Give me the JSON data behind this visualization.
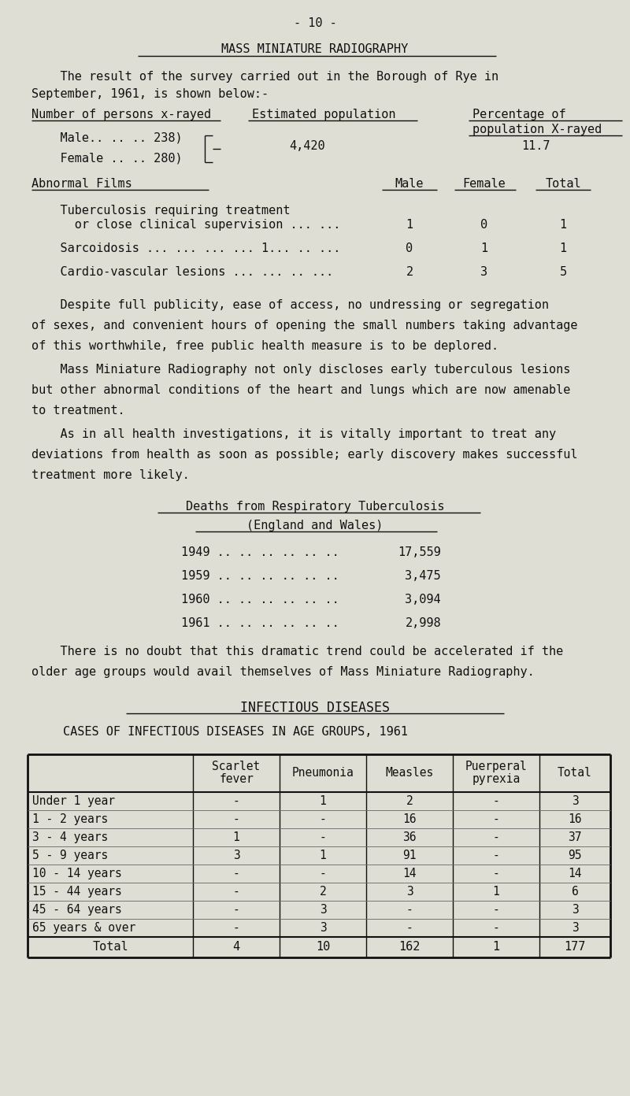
{
  "bg_color": "#deded4",
  "text_color": "#1a1a1a",
  "page_number": "- 10 -",
  "section_title": "MASS MINIATURE RADIOGRAPHY",
  "para1_line1": "    The result of the survey carried out in the Borough of Rye in",
  "para1_line2": "September, 1961, is shown below:-",
  "col_hdr1": "Number of persons x-rayed",
  "col_hdr2": "Estimated population",
  "col_hdr3_1": "Percentage of",
  "col_hdr3_2": "population X-rayed",
  "male_line": "    Male.. .. .. 238)",
  "female_line": "    Female .. .. 280)",
  "est_pop": "4,420",
  "pct": "11.7",
  "abnormal_header": "Abnormal Films",
  "abn_col1": "Male",
  "abn_col2": "Female",
  "abn_col3": "Total",
  "tb_line1": "    Tuberculosis requiring treatment",
  "tb_line2": "      or close clinical supervision ... ...",
  "tb_male": "1",
  "tb_female": "0",
  "tb_total": "1",
  "sarc_line": "    Sarcoidosis ... ... ... ... 1... .. ...",
  "sarc_male": "0",
  "sarc_female": "1",
  "sarc_total": "1",
  "cardio_line": "    Cardio-vascular lesions ... ... .. ...",
  "cardio_male": "2",
  "cardio_female": "3",
  "cardio_total": "5",
  "para2_lines": [
    "    Despite full publicity, ease of access, no undressing or segregation",
    "of sexes, and convenient hours of opening the small numbers taking advantage",
    "of this worthwhile, free public health measure is to be deplored."
  ],
  "para3_lines": [
    "    Mass Miniature Radiography not only discloses early tuberculous lesions",
    "but other abnormal conditions of the heart and lungs which are now amenable",
    "to treatment."
  ],
  "para4_lines": [
    "    As in all health investigations, it is vitally important to treat any",
    "deviations from health as soon as possible; early discovery makes successful",
    "treatment more likely."
  ],
  "deaths_title1": "Deaths from Respiratory Tuberculosis",
  "deaths_title2": "(England and Wales)",
  "deaths_rows": [
    [
      "1949 .. .. .. .. .. ..",
      "17,559"
    ],
    [
      "1959 .. .. .. .. .. ..",
      "3,475"
    ],
    [
      "1960 .. .. .. .. .. ..",
      "3,094"
    ],
    [
      "1961 .. .. .. .. .. ..",
      "2,998"
    ]
  ],
  "para5_lines": [
    "    There is no doubt that this dramatic trend could be accelerated if the",
    "older age groups would avail themselves of Mass Miniature Radiography."
  ],
  "inf_title": "INFECTIOUS DISEASES",
  "inf_subtitle": "CASES OF INFECTIOUS DISEASES IN AGE GROUPS, 1961",
  "table_col_headers": [
    "",
    "Scarlet\nfever",
    "Pneumonia",
    "Measles",
    "Puerperal\npyrexia",
    "Total"
  ],
  "table_rows": [
    [
      "Under 1 year",
      "-",
      "1",
      "2",
      "-",
      "3"
    ],
    [
      "1 - 2 years",
      "-",
      "-",
      "16",
      "-",
      "16"
    ],
    [
      "3 - 4 years",
      "1",
      "-",
      "36",
      "-",
      "37"
    ],
    [
      "5 - 9 years",
      "3",
      "1",
      "91",
      "-",
      "95"
    ],
    [
      "10 - 14 years",
      "-",
      "-",
      "14",
      "-",
      "14"
    ],
    [
      "15 - 44 years",
      "-",
      "2",
      "3",
      "1",
      "6"
    ],
    [
      "45 - 64 years",
      "-",
      "3",
      "-",
      "-",
      "3"
    ],
    [
      "65 years & over",
      "-",
      "3",
      "-",
      "-",
      "3"
    ]
  ],
  "table_total_row": [
    "Total",
    "4",
    "10",
    "162",
    "1",
    "177"
  ]
}
